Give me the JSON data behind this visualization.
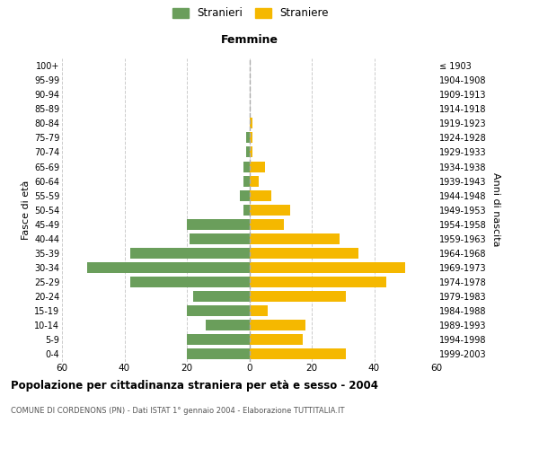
{
  "age_groups": [
    "0-4",
    "5-9",
    "10-14",
    "15-19",
    "20-24",
    "25-29",
    "30-34",
    "35-39",
    "40-44",
    "45-49",
    "50-54",
    "55-59",
    "60-64",
    "65-69",
    "70-74",
    "75-79",
    "80-84",
    "85-89",
    "90-94",
    "95-99",
    "100+"
  ],
  "birth_years": [
    "1999-2003",
    "1994-1998",
    "1989-1993",
    "1984-1988",
    "1979-1983",
    "1974-1978",
    "1969-1973",
    "1964-1968",
    "1959-1963",
    "1954-1958",
    "1949-1953",
    "1944-1948",
    "1939-1943",
    "1934-1938",
    "1929-1933",
    "1924-1928",
    "1919-1923",
    "1914-1918",
    "1909-1913",
    "1904-1908",
    "≤ 1903"
  ],
  "males": [
    20,
    20,
    14,
    20,
    18,
    38,
    52,
    38,
    19,
    20,
    2,
    3,
    2,
    2,
    1,
    1,
    0,
    0,
    0,
    0,
    0
  ],
  "females": [
    31,
    17,
    18,
    6,
    31,
    44,
    50,
    35,
    29,
    11,
    13,
    7,
    3,
    5,
    1,
    1,
    1,
    0,
    0,
    0,
    0
  ],
  "male_color": "#6a9e5b",
  "female_color": "#f5b800",
  "background_color": "#ffffff",
  "grid_color": "#cccccc",
  "bar_height": 0.75,
  "xlim": 60,
  "title": "Popolazione per cittadinanza straniera per età e sesso - 2004",
  "subtitle": "COMUNE DI CORDENONS (PN) - Dati ISTAT 1° gennaio 2004 - Elaborazione TUTTITALIA.IT",
  "xlabel_right": "Femmine",
  "ylabel_left": "Fasce di età",
  "ylabel_right": "Anni di nascita",
  "legend_stranieri": "Stranieri",
  "legend_straniere": "Straniere",
  "xtick_positions": [
    -60,
    -40,
    -20,
    0,
    20,
    40,
    60
  ],
  "xtick_labels": [
    "60",
    "40",
    "20",
    "0",
    "20",
    "40",
    "60"
  ]
}
